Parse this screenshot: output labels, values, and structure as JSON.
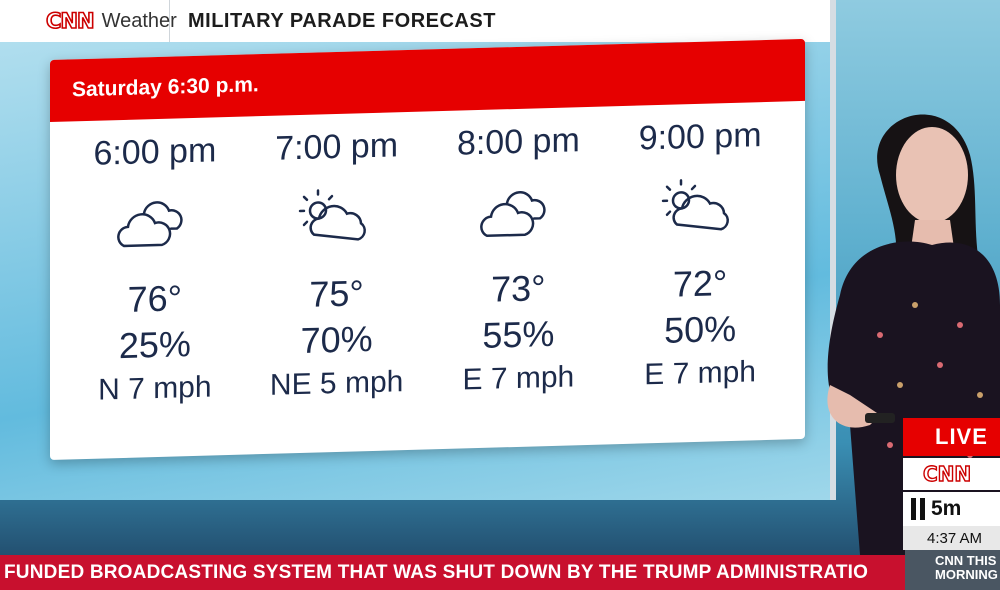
{
  "header": {
    "brand": "CNN",
    "brand_word": "Weather",
    "title": "MILITARY PARADE FORECAST"
  },
  "forecast": {
    "heading": "Saturday 6:30 p.m.",
    "hours": [
      {
        "time": "6:00 pm",
        "icon": "cloudy-icon",
        "temp": "76°",
        "precip": "25%",
        "wind": "N 7 mph"
      },
      {
        "time": "7:00 pm",
        "icon": "partly-cloudy-icon",
        "temp": "75°",
        "precip": "70%",
        "wind": "NE 5 mph"
      },
      {
        "time": "8:00 pm",
        "icon": "cloudy-icon",
        "temp": "73°",
        "precip": "55%",
        "wind": "E  7 mph"
      },
      {
        "time": "9:00 pm",
        "icon": "partly-cloudy-icon",
        "temp": "72°",
        "precip": "50%",
        "wind": "E 7 mph"
      }
    ]
  },
  "bug": {
    "live": "LIVE",
    "brand": "CNN",
    "timer": "5m",
    "clock": "4:37 AM"
  },
  "ticker": {
    "text": "FUNDED BROADCASTING SYSTEM THAT WAS SHUT DOWN BY THE TRUMP ADMINISTRATIO",
    "show": "CNN THIS MORNING"
  },
  "colors": {
    "accent_red": "#e60000",
    "ticker_red": "#c8102e",
    "text_navy": "#1c2a4a"
  }
}
